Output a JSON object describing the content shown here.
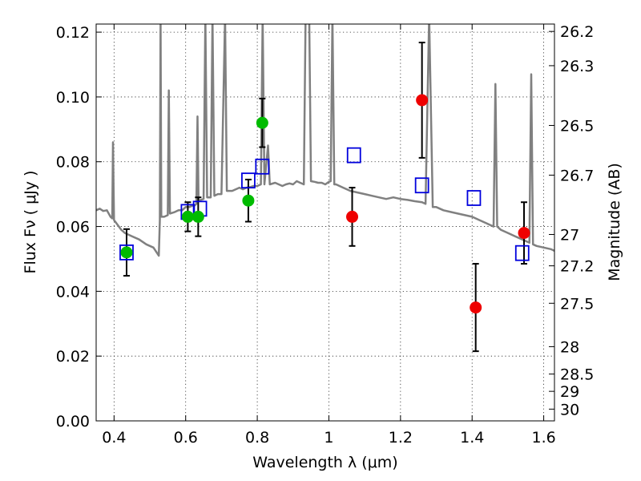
{
  "chart_data": {
    "type": "scatter",
    "xlabel": "Wavelength  λ (μm)",
    "ylabel": "Flux  Fν  ( μJy )",
    "y2label": "Magnitude (AB)",
    "xlim": [
      0.35,
      1.63
    ],
    "ylim": [
      0.0,
      0.1225
    ],
    "grid": true,
    "x_ticks": [
      0.4,
      0.6,
      0.8,
      1.0,
      1.2,
      1.4,
      1.6
    ],
    "x_tick_labels": [
      "0.4",
      "0.6",
      "0.8",
      "1",
      "1.2",
      "1.4",
      "1.6"
    ],
    "y_ticks": [
      0.0,
      0.02,
      0.04,
      0.06,
      0.08,
      0.1,
      0.12
    ],
    "y_tick_labels": [
      "0.00",
      "0.02",
      "0.04",
      "0.06",
      "0.08",
      "0.10",
      "0.12"
    ],
    "mag_ticks": [
      "26.2",
      "26.3",
      "26.5",
      "26.7",
      "27",
      "27.2",
      "27.5",
      "28",
      "28.5",
      "29",
      "30"
    ],
    "colors": {
      "model": "#808080",
      "optical": "#00bb00",
      "nir": "#ee0000",
      "model_band": "#0000dd",
      "errorbar": "#000000"
    },
    "series": [
      {
        "kind": "errorbar",
        "color_key": "optical",
        "points": [
          {
            "x": 0.435,
            "y": 0.052,
            "err": 0.0072
          },
          {
            "x": 0.606,
            "y": 0.063,
            "err": 0.0045
          },
          {
            "x": 0.635,
            "y": 0.063,
            "err": 0.006
          },
          {
            "x": 0.775,
            "y": 0.068,
            "err": 0.0065
          },
          {
            "x": 0.814,
            "y": 0.092,
            "err": 0.0075
          }
        ]
      },
      {
        "kind": "errorbar",
        "color_key": "nir",
        "points": [
          {
            "x": 1.065,
            "y": 0.063,
            "err": 0.009
          },
          {
            "x": 1.26,
            "y": 0.099,
            "err": 0.0178
          },
          {
            "x": 1.41,
            "y": 0.035,
            "err": 0.0135
          },
          {
            "x": 1.545,
            "y": 0.058,
            "err": 0.0095
          }
        ]
      },
      {
        "kind": "squares",
        "color_key": "model_band",
        "points": [
          {
            "x": 0.435,
            "y": 0.052
          },
          {
            "x": 0.606,
            "y": 0.0645
          },
          {
            "x": 0.64,
            "y": 0.0655
          },
          {
            "x": 0.775,
            "y": 0.0742
          },
          {
            "x": 0.814,
            "y": 0.0785
          },
          {
            "x": 1.07,
            "y": 0.082
          },
          {
            "x": 1.26,
            "y": 0.0727
          },
          {
            "x": 1.405,
            "y": 0.0688
          },
          {
            "x": 1.54,
            "y": 0.0518
          }
        ]
      },
      {
        "kind": "line",
        "color_key": "model",
        "points": [
          [
            0.35,
            0.065
          ],
          [
            0.36,
            0.0655
          ],
          [
            0.37,
            0.0648
          ],
          [
            0.38,
            0.065
          ],
          [
            0.39,
            0.063
          ],
          [
            0.395,
            0.0625
          ],
          [
            0.397,
            0.086
          ],
          [
            0.4,
            0.062
          ],
          [
            0.41,
            0.0605
          ],
          [
            0.42,
            0.059
          ],
          [
            0.43,
            0.058
          ],
          [
            0.45,
            0.057
          ],
          [
            0.47,
            0.056
          ],
          [
            0.49,
            0.0545
          ],
          [
            0.51,
            0.0535
          ],
          [
            0.525,
            0.051
          ],
          [
            0.528,
            0.062
          ],
          [
            0.53,
            0.125
          ],
          [
            0.532,
            0.063
          ],
          [
            0.54,
            0.063
          ],
          [
            0.55,
            0.0635
          ],
          [
            0.553,
            0.102
          ],
          [
            0.556,
            0.064
          ],
          [
            0.57,
            0.0645
          ],
          [
            0.58,
            0.065
          ],
          [
            0.59,
            0.065
          ],
          [
            0.6,
            0.066
          ],
          [
            0.61,
            0.066
          ],
          [
            0.62,
            0.0665
          ],
          [
            0.625,
            0.0665
          ],
          [
            0.63,
            0.067
          ],
          [
            0.633,
            0.094
          ],
          [
            0.636,
            0.068
          ],
          [
            0.65,
            0.0685
          ],
          [
            0.655,
            0.125
          ],
          [
            0.66,
            0.069
          ],
          [
            0.67,
            0.069
          ],
          [
            0.675,
            0.125
          ],
          [
            0.68,
            0.0695
          ],
          [
            0.69,
            0.07
          ],
          [
            0.7,
            0.07
          ],
          [
            0.71,
            0.125
          ],
          [
            0.715,
            0.071
          ],
          [
            0.73,
            0.071
          ],
          [
            0.74,
            0.0715
          ],
          [
            0.75,
            0.072
          ],
          [
            0.76,
            0.0715
          ],
          [
            0.77,
            0.072
          ],
          [
            0.78,
            0.0722
          ],
          [
            0.79,
            0.0725
          ],
          [
            0.8,
            0.0725
          ],
          [
            0.81,
            0.073
          ],
          [
            0.815,
            0.125
          ],
          [
            0.82,
            0.073
          ],
          [
            0.83,
            0.085
          ],
          [
            0.835,
            0.073
          ],
          [
            0.85,
            0.0735
          ],
          [
            0.86,
            0.073
          ],
          [
            0.87,
            0.0725
          ],
          [
            0.88,
            0.073
          ],
          [
            0.89,
            0.0733
          ],
          [
            0.9,
            0.073
          ],
          [
            0.91,
            0.074
          ],
          [
            0.92,
            0.0735
          ],
          [
            0.93,
            0.073
          ],
          [
            0.935,
            0.125
          ],
          [
            0.945,
            0.125
          ],
          [
            0.95,
            0.074
          ],
          [
            0.96,
            0.0738
          ],
          [
            0.97,
            0.0735
          ],
          [
            0.98,
            0.0735
          ],
          [
            0.99,
            0.073
          ],
          [
            1.0,
            0.0738
          ],
          [
            1.005,
            0.074
          ],
          [
            1.01,
            0.125
          ],
          [
            1.015,
            0.073
          ],
          [
            1.02,
            0.073
          ],
          [
            1.04,
            0.072
          ],
          [
            1.06,
            0.071
          ],
          [
            1.08,
            0.0705
          ],
          [
            1.1,
            0.07
          ],
          [
            1.12,
            0.0695
          ],
          [
            1.14,
            0.069
          ],
          [
            1.16,
            0.0685
          ],
          [
            1.18,
            0.069
          ],
          [
            1.2,
            0.0685
          ],
          [
            1.22,
            0.0682
          ],
          [
            1.24,
            0.0678
          ],
          [
            1.26,
            0.0675
          ],
          [
            1.27,
            0.067
          ],
          [
            1.28,
            0.125
          ],
          [
            1.29,
            0.066
          ],
          [
            1.3,
            0.066
          ],
          [
            1.32,
            0.065
          ],
          [
            1.34,
            0.0645
          ],
          [
            1.36,
            0.064
          ],
          [
            1.38,
            0.0635
          ],
          [
            1.4,
            0.063
          ],
          [
            1.42,
            0.062
          ],
          [
            1.44,
            0.061
          ],
          [
            1.46,
            0.06
          ],
          [
            1.465,
            0.104
          ],
          [
            1.47,
            0.06
          ],
          [
            1.48,
            0.059
          ],
          [
            1.5,
            0.058
          ],
          [
            1.52,
            0.057
          ],
          [
            1.54,
            0.056
          ],
          [
            1.55,
            0.0555
          ],
          [
            1.56,
            0.055
          ],
          [
            1.565,
            0.107
          ],
          [
            1.57,
            0.0545
          ],
          [
            1.58,
            0.054
          ],
          [
            1.6,
            0.0535
          ],
          [
            1.62,
            0.053
          ],
          [
            1.63,
            0.0525
          ]
        ]
      }
    ]
  }
}
